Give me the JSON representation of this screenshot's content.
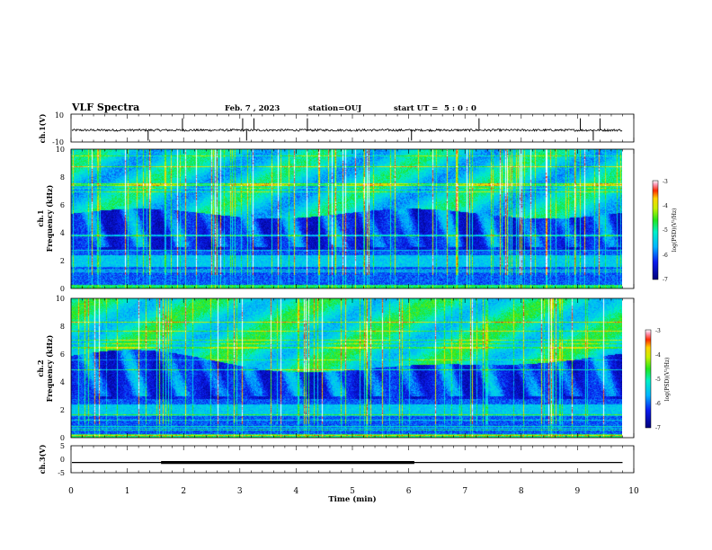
{
  "header": {
    "title": "VLF Spectra",
    "date": "Feb. 7 , 2023",
    "station": "station=OUJ",
    "start_label": "start UT =",
    "start_time": "5 : 0 : 0"
  },
  "chart_data": [
    {
      "type": "line",
      "name": "ch1-waveform",
      "ylabel": "ch.1(V)",
      "ylim": [
        -10,
        10
      ],
      "y_ticks": [
        "10",
        "-10"
      ],
      "baseline_v": -1.5,
      "spikes_min": [
        1.37,
        1.98,
        3.05,
        3.12,
        3.25,
        4.2,
        6.05,
        7.25,
        9.05,
        9.28,
        9.4
      ],
      "color": "#000000"
    },
    {
      "type": "heatmap",
      "name": "ch1-spectrogram",
      "ylabel": "ch.1",
      "ylabel2": "Frequency (kHz)",
      "ylim": [
        0,
        10
      ],
      "y_ticks": [
        "0",
        "2",
        "4",
        "6",
        "8",
        "10"
      ],
      "x_range_min": [
        0,
        10
      ],
      "data_end_min": 9.8,
      "colorbar": {
        "label": "log(PSD)(V²/Hz)",
        "range": [
          -7,
          -3
        ],
        "ticks": [
          "-3",
          "-4",
          "-5",
          "-6",
          "-7"
        ]
      }
    },
    {
      "type": "heatmap",
      "name": "ch2-spectrogram",
      "ylabel": "ch.2",
      "ylabel2": "Frequency (kHz)",
      "ylim": [
        0,
        10
      ],
      "y_ticks": [
        "0",
        "2",
        "4",
        "6",
        "8",
        "10"
      ],
      "x_range_min": [
        0,
        10
      ],
      "data_end_min": 9.8,
      "colorbar": {
        "label": "log(PSD)(V²/Hz)",
        "range": [
          -7,
          -3
        ],
        "ticks": [
          "-3",
          "-4",
          "-5",
          "-6",
          "-7"
        ]
      }
    },
    {
      "type": "line",
      "name": "ch3-signal",
      "ylabel": "ch.3(V)",
      "ylim": [
        -5,
        5
      ],
      "y_ticks": [
        "5",
        "0",
        "-5"
      ],
      "level_v": -1.2,
      "thick_segment_min": [
        1.6,
        6.1
      ],
      "color": "#000000"
    }
  ],
  "x_axis": {
    "label": "Time (min)",
    "ticks": [
      "0",
      "1",
      "2",
      "3",
      "4",
      "5",
      "6",
      "7",
      "8",
      "9",
      "10"
    ]
  }
}
